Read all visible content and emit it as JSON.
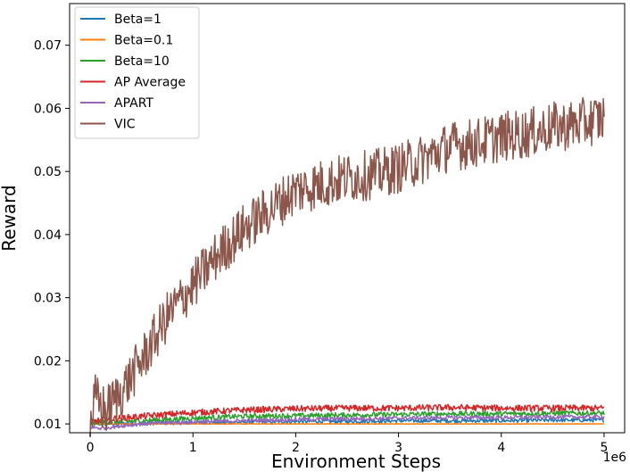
{
  "chart_data": {
    "type": "line",
    "title": "",
    "xlabel": "Environment Steps",
    "ylabel": "Reward",
    "x_offset_label": "1e6",
    "xlim": [
      -0.2,
      5.2
    ],
    "ylim": [
      0.0086,
      0.0766
    ],
    "xticks": [
      0,
      1,
      2,
      3,
      4,
      5
    ],
    "xtick_labels": [
      "0",
      "1",
      "2",
      "3",
      "4",
      "5"
    ],
    "yticks": [
      0.01,
      0.02,
      0.03,
      0.04,
      0.05,
      0.06,
      0.07
    ],
    "ytick_labels": [
      "0.01",
      "0.02",
      "0.03",
      "0.04",
      "0.05",
      "0.06",
      "0.07"
    ],
    "grid": false,
    "legend_position": "top-left",
    "series": [
      {
        "name": "Beta=1",
        "color": "#1f77b4",
        "x": [
          0,
          0.5,
          1,
          1.5,
          2,
          2.5,
          3,
          3.5,
          4,
          4.5,
          5
        ],
        "y": [
          0.01,
          0.0101,
          0.0102,
          0.0103,
          0.0104,
          0.0104,
          0.0105,
          0.0105,
          0.0105,
          0.0106,
          0.0106
        ],
        "noise": 0.0003
      },
      {
        "name": "Beta=0.1",
        "color": "#ff7f0e",
        "x": [
          0,
          1,
          2,
          3,
          4,
          5
        ],
        "y": [
          0.01,
          0.01,
          0.01,
          0.01,
          0.01,
          0.01
        ],
        "noise": 3e-05
      },
      {
        "name": "Beta=10",
        "color": "#2ca02c",
        "x": [
          0,
          0.5,
          1,
          1.5,
          2,
          2.5,
          3,
          3.5,
          4,
          4.5,
          5
        ],
        "y": [
          0.0102,
          0.0105,
          0.0109,
          0.0112,
          0.0113,
          0.0114,
          0.0115,
          0.0116,
          0.0116,
          0.0117,
          0.0117
        ],
        "noise": 0.0004
      },
      {
        "name": "AP Average",
        "color": "#d62728",
        "x": [
          0,
          0.2,
          0.5,
          1,
          1.5,
          2,
          2.5,
          3,
          3.5,
          4,
          4.5,
          5
        ],
        "y": [
          0.0103,
          0.0108,
          0.0112,
          0.0118,
          0.0122,
          0.0124,
          0.0125,
          0.0125,
          0.0126,
          0.0125,
          0.0125,
          0.0125
        ],
        "noise": 0.0005
      },
      {
        "name": "APART",
        "color": "#9467bd",
        "x": [
          0,
          0.1,
          0.3,
          0.5,
          1,
          1.5,
          2,
          2.5,
          3,
          3.5,
          4,
          4.5,
          5
        ],
        "y": [
          0.0095,
          0.0093,
          0.0097,
          0.01,
          0.0103,
          0.0105,
          0.0107,
          0.0108,
          0.0109,
          0.011,
          0.011,
          0.0111,
          0.0111
        ],
        "noise": 0.0003
      },
      {
        "name": "VIC",
        "color": "#8c564b",
        "x": [
          0,
          0.05,
          0.15,
          0.3,
          0.5,
          0.75,
          1,
          1.25,
          1.5,
          1.75,
          2,
          2.25,
          2.5,
          2.75,
          3,
          3.25,
          3.5,
          3.75,
          4,
          4.25,
          4.5,
          4.75,
          5
        ],
        "y": [
          0.01,
          0.014,
          0.012,
          0.015,
          0.02,
          0.027,
          0.032,
          0.037,
          0.041,
          0.044,
          0.047,
          0.048,
          0.049,
          0.0495,
          0.0505,
          0.052,
          0.054,
          0.0545,
          0.0555,
          0.056,
          0.057,
          0.0575,
          0.0585
        ],
        "noise": 0.004
      }
    ]
  }
}
